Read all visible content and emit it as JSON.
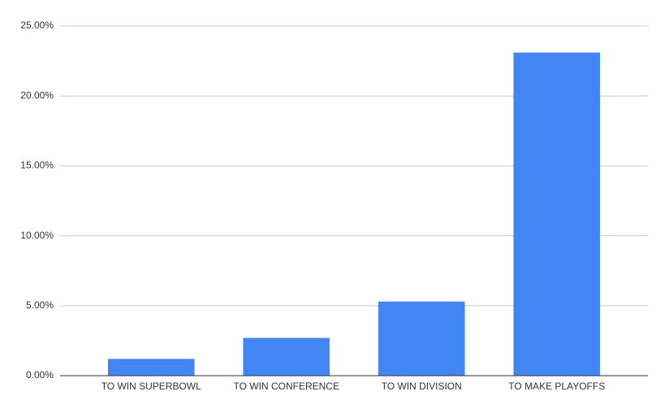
{
  "chart_data": {
    "type": "bar",
    "categories": [
      "TO WIN SUPERBOWL",
      "TO WIN CONFERENCE",
      "TO WIN DIVISION",
      "TO MAKE PLAYOFFS"
    ],
    "values": [
      1.2,
      2.7,
      5.3,
      23.1
    ],
    "color": "#4285f4",
    "ylim": [
      0,
      25
    ],
    "yticks": [
      {
        "value": 0,
        "label": "0.00%"
      },
      {
        "value": 5,
        "label": "5.00%"
      },
      {
        "value": 10,
        "label": "10.00%"
      },
      {
        "value": 15,
        "label": "15.00%"
      },
      {
        "value": 20,
        "label": "20.00%"
      },
      {
        "value": 25,
        "label": "25.00%"
      }
    ],
    "grid": true
  }
}
